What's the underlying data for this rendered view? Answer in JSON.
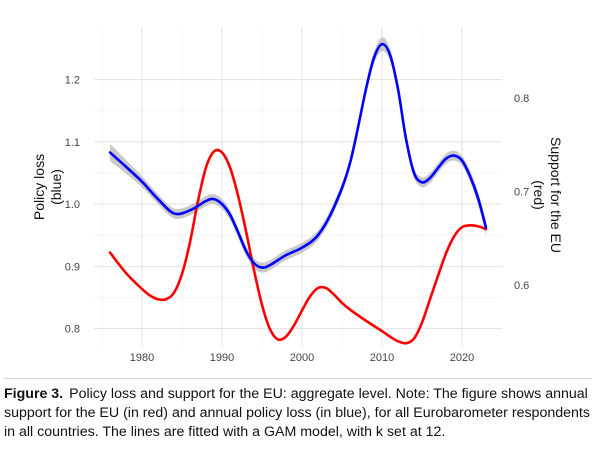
{
  "chart_data": {
    "type": "line",
    "x_ticks": [
      "1980",
      "1990",
      "2000",
      "2010",
      "2020"
    ],
    "xlim": [
      1974,
      2025
    ],
    "left_axis": {
      "label": "Policy loss\n(blue)",
      "ticks": [
        "0.8",
        "0.9",
        "1.0",
        "1.1",
        "1.2"
      ],
      "ylim": [
        0.772,
        1.283
      ]
    },
    "right_axis": {
      "label": "Support for the EU\n(red)",
      "ticks": [
        "0.6",
        "0.7",
        "0.8"
      ],
      "ylim": [
        0.535,
        0.875
      ]
    },
    "grid": true,
    "colors": {
      "policy_loss": "#0000ff",
      "support": "#ff0000",
      "ci_band": "#b8b8b8"
    },
    "series": [
      {
        "axis": "left",
        "x": [
          1976,
          1978,
          1980,
          1982,
          1984,
          1986,
          1988,
          1989,
          1990,
          1991,
          1992,
          1993,
          1994,
          1995,
          1996,
          1998,
          2000,
          2002,
          2004,
          2006,
          2008,
          2009,
          2010,
          2011,
          2012,
          2013,
          2014,
          2015,
          2016,
          2017,
          2018,
          2019,
          2020,
          2021,
          2022,
          2023
        ],
        "y": [
          1.083,
          1.06,
          1.036,
          1.008,
          0.985,
          0.99,
          1.005,
          1.008,
          1.0,
          0.983,
          0.955,
          0.925,
          0.905,
          0.898,
          0.902,
          0.918,
          0.93,
          0.95,
          0.995,
          1.066,
          1.185,
          1.235,
          1.257,
          1.24,
          1.185,
          1.105,
          1.05,
          1.035,
          1.042,
          1.058,
          1.073,
          1.078,
          1.07,
          1.045,
          1.01,
          0.962
        ],
        "band": [
          0.014,
          0.011,
          0.009,
          0.008,
          0.008,
          0.008,
          0.008,
          0.008,
          0.008,
          0.008,
          0.008,
          0.008,
          0.008,
          0.008,
          0.008,
          0.008,
          0.008,
          0.008,
          0.008,
          0.008,
          0.009,
          0.01,
          0.011,
          0.01,
          0.009,
          0.009,
          0.008,
          0.008,
          0.008,
          0.008,
          0.008,
          0.008,
          0.008,
          0.009,
          0.01,
          0.012
        ]
      },
      {
        "axis": "right",
        "x": [
          1976,
          1978,
          1980,
          1981,
          1982,
          1983,
          1984,
          1985,
          1986,
          1987,
          1988,
          1989,
          1990,
          1991,
          1992,
          1993,
          1994,
          1995,
          1996,
          1997,
          1998,
          1999,
          2000,
          2001,
          2002,
          2003,
          2004,
          2005,
          2006,
          2008,
          2010,
          2011,
          2012,
          2013,
          2014,
          2015,
          2016,
          2017,
          2018,
          2019,
          2020,
          2021,
          2022,
          2023
        ],
        "y": [
          0.635,
          0.613,
          0.596,
          0.589,
          0.585,
          0.585,
          0.592,
          0.612,
          0.646,
          0.69,
          0.726,
          0.743,
          0.742,
          0.726,
          0.696,
          0.658,
          0.616,
          0.579,
          0.553,
          0.542,
          0.545,
          0.557,
          0.573,
          0.588,
          0.597,
          0.597,
          0.59,
          0.581,
          0.574,
          0.562,
          0.551,
          0.545,
          0.54,
          0.538,
          0.543,
          0.56,
          0.585,
          0.61,
          0.634,
          0.652,
          0.662,
          0.664,
          0.663,
          0.66
        ]
      }
    ]
  },
  "caption": {
    "label": "Figure 3.",
    "text": "Policy loss and support for the EU: aggregate level. Note: The figure shows annual support for the EU (in red) and annual policy loss (in blue), for all Eurobarometer respondents in all countries. The lines are fitted with a GAM model, with k set at 12."
  }
}
